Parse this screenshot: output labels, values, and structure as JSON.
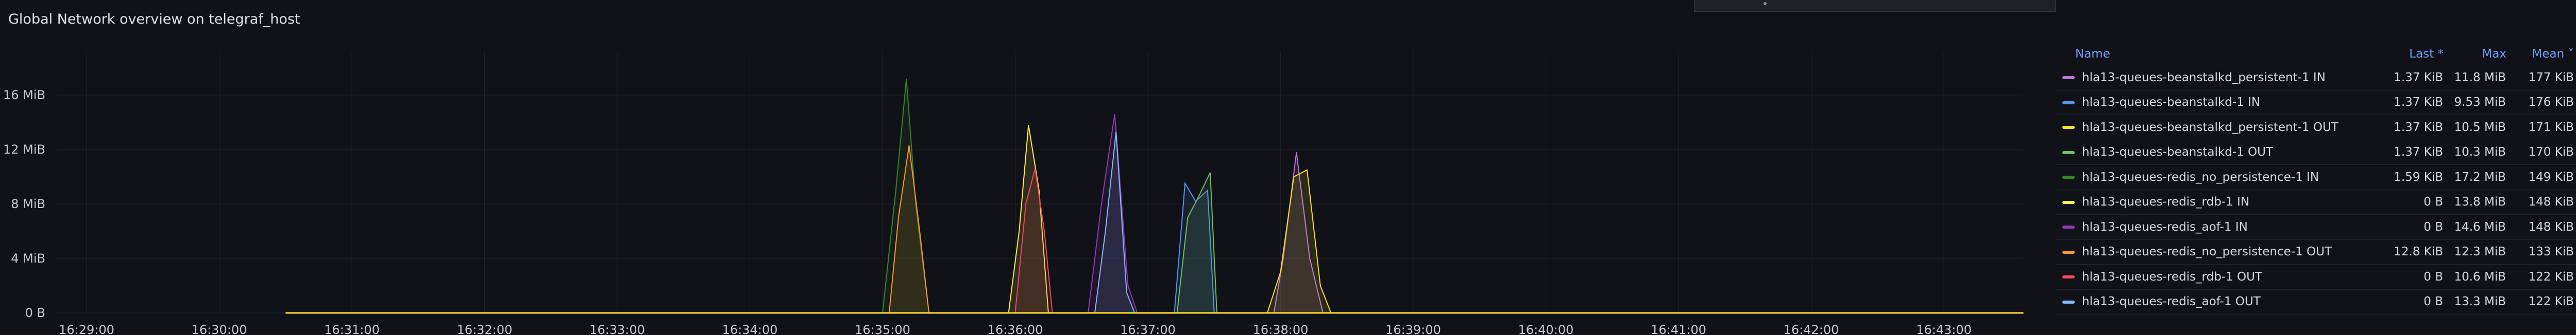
{
  "panel": {
    "title": "Global Network overview on telegraf_host"
  },
  "legend": {
    "headers": {
      "name": "Name",
      "last": "Last *",
      "max": "Max",
      "mean": "Mean ˅"
    },
    "rows": [
      {
        "name": "hla13-queues-beanstalkd_persistent-1 IN",
        "last": "1.37 KiB",
        "max": "11.8 MiB",
        "mean": "177 KiB",
        "color": "#b877d9"
      },
      {
        "name": "hla13-queues-beanstalkd-1 IN",
        "last": "1.37 KiB",
        "max": "9.53 MiB",
        "mean": "176 KiB",
        "color": "#5794f2"
      },
      {
        "name": "hla13-queues-beanstalkd_persistent-1 OUT",
        "last": "1.37 KiB",
        "max": "10.5 MiB",
        "mean": "171 KiB",
        "color": "#fade2a"
      },
      {
        "name": "hla13-queues-beanstalkd-1 OUT",
        "last": "1.37 KiB",
        "max": "10.3 MiB",
        "mean": "170 KiB",
        "color": "#73bf69"
      },
      {
        "name": "hla13-queues-redis_no_persistence-1 IN",
        "last": "1.59 KiB",
        "max": "17.2 MiB",
        "mean": "149 KiB",
        "color": "#37872d"
      },
      {
        "name": "hla13-queues-redis_rdb-1 IN",
        "last": "0 B",
        "max": "13.8 MiB",
        "mean": "148 KiB",
        "color": "#ffee52"
      },
      {
        "name": "hla13-queues-redis_aof-1 IN",
        "last": "0 B",
        "max": "14.6 MiB",
        "mean": "148 KiB",
        "color": "#8f3bb8"
      },
      {
        "name": "hla13-queues-redis_no_persistence-1 OUT",
        "last": "12.8 KiB",
        "max": "12.3 MiB",
        "mean": "133 KiB",
        "color": "#ff9830"
      },
      {
        "name": "hla13-queues-redis_rdb-1 OUT",
        "last": "0 B",
        "max": "10.6 MiB",
        "mean": "122 KiB",
        "color": "#f2495c"
      },
      {
        "name": "hla13-queues-redis_aof-1 OUT",
        "last": "0 B",
        "max": "13.3 MiB",
        "mean": "122 KiB",
        "color": "#8ab8ff"
      }
    ]
  },
  "chart_data": {
    "type": "area",
    "title": "Global Network overview on telegraf_host",
    "y_ticks": [
      "0 B",
      "4 MiB",
      "8 MiB",
      "12 MiB",
      "16 MiB"
    ],
    "y_tick_values": [
      0,
      4,
      8,
      12,
      16
    ],
    "ylim": [
      0,
      19
    ],
    "x_ticks": [
      "16:29:00",
      "16:30:00",
      "16:31:00",
      "16:32:00",
      "16:33:00",
      "16:34:00",
      "16:35:00",
      "16:36:00",
      "16:37:00",
      "16:38:00",
      "16:39:00",
      "16:40:00",
      "16:41:00",
      "16:42:00",
      "16:43:00"
    ],
    "x_tick_minutes": [
      0,
      1,
      2,
      3,
      4,
      5,
      6,
      7,
      8,
      9,
      10,
      11,
      12,
      13,
      14
    ],
    "x_range_minutes": [
      -0.15,
      14.6
    ],
    "data_start_minute": 1.5,
    "data_end_minute": 14.6,
    "grid": true,
    "series": [
      {
        "name": "hla13-queues-redis_no_persistence-1 IN",
        "color": "#37872d",
        "points": [
          [
            6.0,
            0
          ],
          [
            6.1,
            9
          ],
          [
            6.18,
            17.2
          ],
          [
            6.25,
            8
          ],
          [
            6.35,
            0
          ]
        ]
      },
      {
        "name": "hla13-queues-redis_no_persistence-1 OUT",
        "color": "#ff9830",
        "points": [
          [
            6.05,
            0
          ],
          [
            6.12,
            7
          ],
          [
            6.2,
            12.3
          ],
          [
            6.28,
            6
          ],
          [
            6.35,
            0
          ]
        ]
      },
      {
        "name": "hla13-queues-redis_rdb-1 IN",
        "color": "#ffee52",
        "points": [
          [
            6.95,
            0
          ],
          [
            7.03,
            6
          ],
          [
            7.1,
            13.8
          ],
          [
            7.18,
            9
          ],
          [
            7.25,
            0
          ]
        ]
      },
      {
        "name": "hla13-queues-redis_rdb-1 OUT",
        "color": "#f2495c",
        "points": [
          [
            7.0,
            0
          ],
          [
            7.08,
            8
          ],
          [
            7.15,
            10.6
          ],
          [
            7.22,
            6
          ],
          [
            7.28,
            0
          ]
        ]
      },
      {
        "name": "hla13-queues-redis_aof-1 IN",
        "color": "#8f3bb8",
        "points": [
          [
            7.55,
            0
          ],
          [
            7.65,
            8
          ],
          [
            7.75,
            14.6
          ],
          [
            7.85,
            2
          ],
          [
            7.92,
            0
          ]
        ]
      },
      {
        "name": "hla13-queues-redis_aof-1 OUT",
        "color": "#8ab8ff",
        "points": [
          [
            7.6,
            0
          ],
          [
            7.68,
            6
          ],
          [
            7.76,
            13.3
          ],
          [
            7.84,
            1.5
          ],
          [
            7.9,
            0
          ]
        ]
      },
      {
        "name": "hla13-queues-beanstalkd-1 IN",
        "color": "#5794f2",
        "points": [
          [
            8.2,
            0
          ],
          [
            8.28,
            9.53
          ],
          [
            8.36,
            8.2
          ],
          [
            8.45,
            9
          ],
          [
            8.5,
            0
          ]
        ]
      },
      {
        "name": "hla13-queues-beanstalkd-1 OUT",
        "color": "#73bf69",
        "points": [
          [
            8.22,
            0
          ],
          [
            8.3,
            7
          ],
          [
            8.38,
            8.5
          ],
          [
            8.47,
            10.3
          ],
          [
            8.52,
            0
          ]
        ]
      },
      {
        "name": "hla13-queues-beanstalkd_persistent-1 IN",
        "color": "#b877d9",
        "points": [
          [
            8.95,
            0
          ],
          [
            9.02,
            4
          ],
          [
            9.12,
            11.8
          ],
          [
            9.22,
            4
          ],
          [
            9.32,
            0
          ]
        ]
      },
      {
        "name": "hla13-queues-beanstalkd_persistent-1 OUT",
        "color": "#fade2a",
        "points": [
          [
            8.9,
            0
          ],
          [
            9.0,
            3
          ],
          [
            9.1,
            10
          ],
          [
            9.2,
            10.5
          ],
          [
            9.3,
            2
          ],
          [
            9.38,
            0
          ]
        ]
      }
    ]
  }
}
